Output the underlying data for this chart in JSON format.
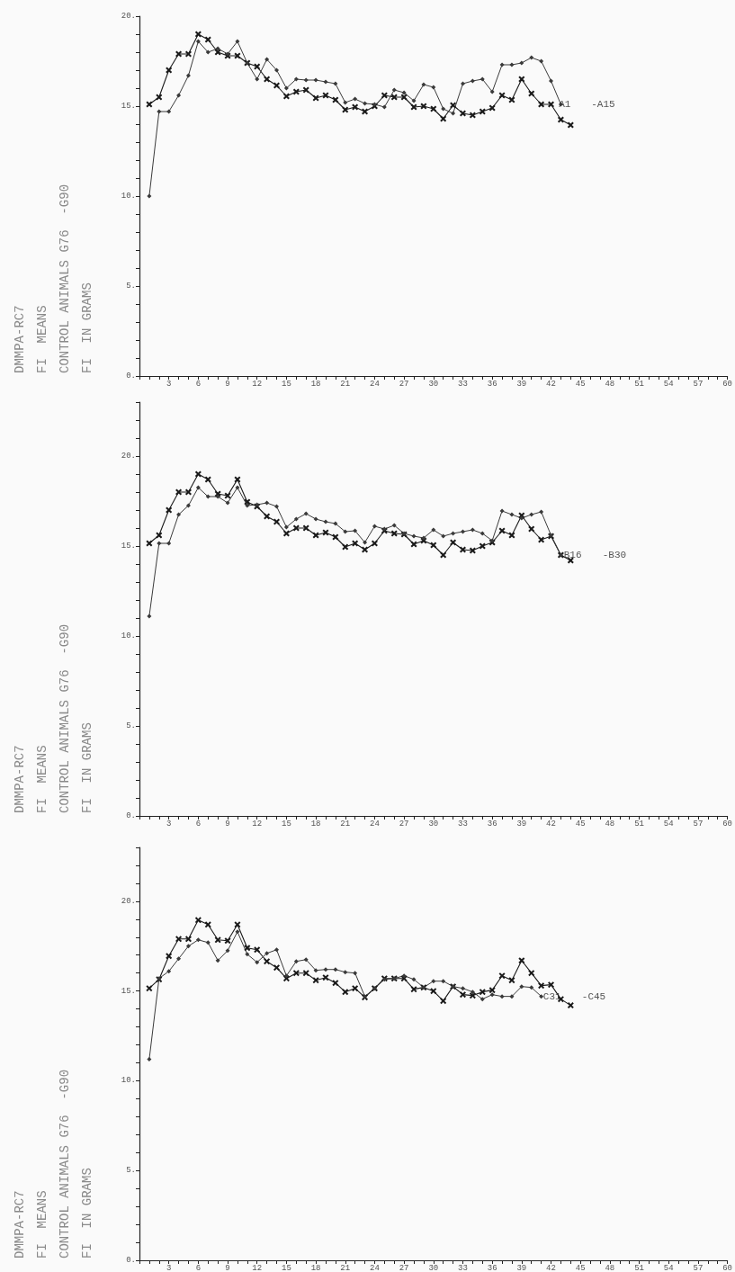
{
  "chart_data": [
    {
      "type": "line",
      "ylabel": "FI  IN GRAMS",
      "annotations": [
        "DMMPA-RC7",
        "FI  MEANS",
        "CONTROL ANIMALS G76  -G90",
        {
          "text": "A1",
          "x": 42.8,
          "y": 15.1
        },
        "-A15"
      ],
      "xlim": [
        0,
        60
      ],
      "ylim": [
        0,
        20
      ],
      "xticks": [
        {
          "value": 0,
          "label": null
        },
        {
          "value": 1,
          "label": null
        },
        {
          "value": 2,
          "label": null
        },
        3,
        {
          "value": 4,
          "label": null
        },
        {
          "value": 5,
          "label": null
        },
        6,
        {
          "value": 7,
          "label": null
        },
        {
          "value": 8,
          "label": null
        },
        9,
        {
          "value": 10,
          "label": null
        },
        {
          "value": 11,
          "label": null
        },
        12,
        {
          "value": 13,
          "label": null
        },
        {
          "value": 14,
          "label": null
        },
        15,
        {
          "value": 16,
          "label": null
        },
        {
          "value": 17,
          "label": null
        },
        18,
        {
          "value": 19,
          "label": null
        },
        {
          "value": 20,
          "label": null
        },
        21,
        {
          "value": 22,
          "label": null
        },
        {
          "value": 23,
          "label": null
        },
        24,
        {
          "value": 25,
          "label": null
        },
        {
          "value": 26,
          "label": null
        },
        27,
        {
          "value": 28,
          "label": null
        },
        {
          "value": 29,
          "label": null
        },
        30,
        {
          "value": 31,
          "label": null
        },
        {
          "value": 32,
          "label": null
        },
        33,
        {
          "value": 34,
          "label": null
        },
        {
          "value": 35,
          "label": null
        },
        36,
        {
          "value": 37,
          "label": null
        },
        {
          "value": 38,
          "label": null
        },
        39,
        {
          "value": 40,
          "label": null
        },
        {
          "value": 41,
          "label": null
        },
        42,
        {
          "value": 43,
          "label": null
        },
        {
          "value": 44,
          "label": null
        },
        45,
        {
          "value": 46,
          "label": null
        },
        {
          "value": 47,
          "label": null
        },
        48,
        {
          "value": 49,
          "label": null
        },
        {
          "value": 50,
          "label": null
        },
        51,
        {
          "value": 52,
          "label": null
        },
        {
          "value": 53,
          "label": null
        },
        54,
        {
          "value": 55,
          "label": null
        },
        {
          "value": 56,
          "label": null
        },
        57,
        {
          "value": 58,
          "label": null
        },
        {
          "value": 59,
          "label": null
        },
        60
      ],
      "yticks": [
        {
          "value": 0,
          "label": "0."
        },
        {
          "value": 1,
          "label": null
        },
        {
          "value": 2,
          "label": null
        },
        {
          "value": 3,
          "label": null
        },
        {
          "value": 4,
          "label": null
        },
        {
          "value": 5,
          "label": "5."
        },
        {
          "value": 6,
          "label": null
        },
        {
          "value": 7,
          "label": null
        },
        {
          "value": 8,
          "label": null
        },
        {
          "value": 9,
          "label": null
        },
        {
          "value": 10,
          "label": "10."
        },
        {
          "value": 11,
          "label": null
        },
        {
          "value": 12,
          "label": null
        },
        {
          "value": 13,
          "label": null
        },
        {
          "value": 14,
          "label": null
        },
        {
          "value": 15,
          "label": "15."
        },
        {
          "value": 16,
          "label": null
        },
        {
          "value": 17,
          "label": null
        },
        {
          "value": 18,
          "label": null
        },
        {
          "value": 19,
          "label": null
        },
        {
          "value": 20,
          "label": "20."
        }
      ],
      "series": [
        {
          "color": "#1a1a1a",
          "marker": "cross",
          "x": [
            1,
            2,
            3,
            4,
            5,
            6,
            7,
            8,
            9,
            10,
            11,
            12,
            13,
            14,
            15,
            16,
            17,
            18,
            19,
            20,
            21,
            22,
            23,
            24,
            25,
            26,
            27,
            28,
            29,
            30,
            31,
            32,
            33,
            34,
            35,
            36,
            37,
            38,
            39,
            40,
            41,
            42,
            43,
            44
          ],
          "values": [
            15.1,
            15.5,
            17.0,
            17.9,
            17.9,
            19.0,
            18.7,
            18.0,
            17.8,
            17.8,
            17.4,
            17.2,
            16.5,
            16.15,
            15.55,
            15.8,
            15.9,
            15.45,
            15.6,
            15.35,
            14.8,
            14.95,
            14.7,
            15.0,
            15.6,
            15.5,
            15.5,
            14.95,
            15.0,
            14.85,
            14.3,
            15.05,
            14.6,
            14.5,
            14.7,
            14.9,
            15.6,
            15.35,
            16.5,
            15.7,
            15.1,
            15.1,
            14.25,
            13.95
          ]
        },
        {
          "color": "#3a3a3a",
          "marker": "diamond",
          "x": [
            1,
            2,
            3,
            4,
            5,
            6,
            7,
            8,
            9,
            10,
            11,
            12,
            13,
            14,
            15,
            16,
            17,
            18,
            19,
            20,
            21,
            22,
            23,
            24,
            25,
            26,
            27,
            28,
            29,
            30,
            31,
            32,
            33,
            34,
            35,
            36,
            37,
            38,
            39,
            40,
            41,
            42,
            43
          ],
          "values": [
            10.0,
            14.7,
            14.7,
            15.6,
            16.7,
            18.6,
            18.0,
            18.2,
            17.9,
            18.6,
            17.4,
            16.5,
            17.6,
            17.0,
            16.0,
            16.5,
            16.45,
            16.45,
            16.35,
            16.25,
            15.2,
            15.4,
            15.15,
            15.1,
            14.95,
            15.9,
            15.75,
            15.3,
            16.2,
            16.05,
            14.85,
            14.6,
            16.25,
            16.4,
            16.5,
            15.8,
            17.3,
            17.3,
            17.4,
            17.7,
            17.5,
            16.4,
            15.1
          ]
        }
      ]
    },
    {
      "type": "line",
      "ylabel": "FI  IN GRAMS",
      "annotations": [
        "DMMPA-RC7",
        "FI  MEANS",
        "CONTROL ANIMALS G76  -G90",
        {
          "text": "B16",
          "x": 43.3,
          "y": 14.5
        },
        "-B30"
      ],
      "xlim": [
        0,
        60
      ],
      "ylim": [
        0,
        23
      ],
      "xticks": [
        {
          "value": 0,
          "label": null
        },
        {
          "value": 1,
          "label": null
        },
        {
          "value": 2,
          "label": null
        },
        3,
        {
          "value": 4,
          "label": null
        },
        {
          "value": 5,
          "label": null
        },
        6,
        {
          "value": 7,
          "label": null
        },
        {
          "value": 8,
          "label": null
        },
        9,
        {
          "value": 10,
          "label": null
        },
        {
          "value": 11,
          "label": null
        },
        12,
        {
          "value": 13,
          "label": null
        },
        {
          "value": 14,
          "label": null
        },
        15,
        {
          "value": 16,
          "label": null
        },
        {
          "value": 17,
          "label": null
        },
        18,
        {
          "value": 19,
          "label": null
        },
        {
          "value": 20,
          "label": null
        },
        21,
        {
          "value": 22,
          "label": null
        },
        {
          "value": 23,
          "label": null
        },
        24,
        {
          "value": 25,
          "label": null
        },
        {
          "value": 26,
          "label": null
        },
        27,
        {
          "value": 28,
          "label": null
        },
        {
          "value": 29,
          "label": null
        },
        30,
        {
          "value": 31,
          "label": null
        },
        {
          "value": 32,
          "label": null
        },
        33,
        {
          "value": 34,
          "label": null
        },
        {
          "value": 35,
          "label": null
        },
        36,
        {
          "value": 37,
          "label": null
        },
        {
          "value": 38,
          "label": null
        },
        39,
        {
          "value": 40,
          "label": null
        },
        {
          "value": 41,
          "label": null
        },
        42,
        {
          "value": 43,
          "label": null
        },
        {
          "value": 44,
          "label": null
        },
        45,
        {
          "value": 46,
          "label": null
        },
        {
          "value": 47,
          "label": null
        },
        48,
        {
          "value": 49,
          "label": null
        },
        {
          "value": 50,
          "label": null
        },
        51,
        {
          "value": 52,
          "label": null
        },
        {
          "value": 53,
          "label": null
        },
        54,
        {
          "value": 55,
          "label": null
        },
        {
          "value": 56,
          "label": null
        },
        57,
        {
          "value": 58,
          "label": null
        },
        {
          "value": 59,
          "label": null
        },
        60
      ],
      "yticks": [
        {
          "value": 0,
          "label": "0."
        },
        {
          "value": 1,
          "label": null
        },
        {
          "value": 2,
          "label": null
        },
        {
          "value": 3,
          "label": null
        },
        {
          "value": 4,
          "label": null
        },
        {
          "value": 5,
          "label": "5."
        },
        {
          "value": 6,
          "label": null
        },
        {
          "value": 7,
          "label": null
        },
        {
          "value": 8,
          "label": null
        },
        {
          "value": 9,
          "label": null
        },
        {
          "value": 10,
          "label": "10."
        },
        {
          "value": 11,
          "label": null
        },
        {
          "value": 12,
          "label": null
        },
        {
          "value": 13,
          "label": null
        },
        {
          "value": 14,
          "label": null
        },
        {
          "value": 15,
          "label": "15."
        },
        {
          "value": 16,
          "label": null
        },
        {
          "value": 17,
          "label": null
        },
        {
          "value": 18,
          "label": null
        },
        {
          "value": 19,
          "label": null
        },
        {
          "value": 20,
          "label": "20."
        },
        {
          "value": 21,
          "label": null
        },
        {
          "value": 22,
          "label": null
        },
        {
          "value": 23,
          "label": null
        }
      ],
      "series": [
        {
          "color": "#1a1a1a",
          "marker": "cross",
          "x": [
            1,
            2,
            3,
            4,
            5,
            6,
            7,
            8,
            9,
            10,
            11,
            12,
            13,
            14,
            15,
            16,
            17,
            18,
            19,
            20,
            21,
            22,
            23,
            24,
            25,
            26,
            27,
            28,
            29,
            30,
            31,
            32,
            33,
            34,
            35,
            36,
            37,
            38,
            39,
            40,
            41,
            42,
            43,
            44
          ],
          "values": [
            15.15,
            15.6,
            17.0,
            18.0,
            18.0,
            19.0,
            18.7,
            17.9,
            17.8,
            18.7,
            17.45,
            17.2,
            16.65,
            16.35,
            15.7,
            16.0,
            16.0,
            15.6,
            15.75,
            15.5,
            14.95,
            15.15,
            14.8,
            15.15,
            15.85,
            15.7,
            15.65,
            15.1,
            15.3,
            15.05,
            14.5,
            15.2,
            14.8,
            14.75,
            15.0,
            15.2,
            15.85,
            15.6,
            16.7,
            15.95,
            15.35,
            15.55,
            14.5,
            14.2
          ]
        },
        {
          "color": "#3a3a3a",
          "marker": "diamond",
          "x": [
            1,
            2,
            3,
            4,
            5,
            6,
            7,
            8,
            9,
            10,
            11,
            12,
            13,
            14,
            15,
            16,
            17,
            18,
            19,
            20,
            21,
            22,
            23,
            24,
            25,
            26,
            27,
            28,
            29,
            30,
            31,
            32,
            33,
            34,
            35,
            36,
            37,
            38,
            39,
            40,
            41,
            42,
            43
          ],
          "values": [
            11.1,
            15.15,
            15.15,
            16.75,
            17.25,
            18.25,
            17.75,
            17.75,
            17.4,
            18.25,
            17.25,
            17.3,
            17.4,
            17.2,
            16.05,
            16.5,
            16.8,
            16.5,
            16.35,
            16.25,
            15.8,
            15.85,
            15.2,
            16.1,
            15.95,
            16.15,
            15.7,
            15.55,
            15.45,
            15.9,
            15.55,
            15.7,
            15.8,
            15.9,
            15.7,
            15.3,
            16.95,
            16.75,
            16.55,
            16.75,
            16.9,
            15.6,
            14.5
          ]
        }
      ]
    },
    {
      "type": "line",
      "ylabel": "FI  IN GRAMS",
      "annotations": [
        "DMMPA-RC7",
        "FI  MEANS",
        "CONTROL ANIMALS G76  -G90",
        {
          "text": "C31",
          "x": 41.2,
          "y": 14.7
        },
        "-C45"
      ],
      "xlim": [
        0,
        60
      ],
      "ylim": [
        0,
        23
      ],
      "xticks": [
        {
          "value": 0,
          "label": null
        },
        {
          "value": 1,
          "label": null
        },
        {
          "value": 2,
          "label": null
        },
        3,
        {
          "value": 4,
          "label": null
        },
        {
          "value": 5,
          "label": null
        },
        6,
        {
          "value": 7,
          "label": null
        },
        {
          "value": 8,
          "label": null
        },
        9,
        {
          "value": 10,
          "label": null
        },
        {
          "value": 11,
          "label": null
        },
        12,
        {
          "value": 13,
          "label": null
        },
        {
          "value": 14,
          "label": null
        },
        15,
        {
          "value": 16,
          "label": null
        },
        {
          "value": 17,
          "label": null
        },
        18,
        {
          "value": 19,
          "label": null
        },
        {
          "value": 20,
          "label": null
        },
        21,
        {
          "value": 22,
          "label": null
        },
        {
          "value": 23,
          "label": null
        },
        24,
        {
          "value": 25,
          "label": null
        },
        {
          "value": 26,
          "label": null
        },
        27,
        {
          "value": 28,
          "label": null
        },
        {
          "value": 29,
          "label": null
        },
        30,
        {
          "value": 31,
          "label": null
        },
        {
          "value": 32,
          "label": null
        },
        33,
        {
          "value": 34,
          "label": null
        },
        {
          "value": 35,
          "label": null
        },
        36,
        {
          "value": 37,
          "label": null
        },
        {
          "value": 38,
          "label": null
        },
        39,
        {
          "value": 40,
          "label": null
        },
        {
          "value": 41,
          "label": null
        },
        42,
        {
          "value": 43,
          "label": null
        },
        {
          "value": 44,
          "label": null
        },
        45,
        {
          "value": 46,
          "label": null
        },
        {
          "value": 47,
          "label": null
        },
        48,
        {
          "value": 49,
          "label": null
        },
        {
          "value": 50,
          "label": null
        },
        51,
        {
          "value": 52,
          "label": null
        },
        {
          "value": 53,
          "label": null
        },
        54,
        {
          "value": 55,
          "label": null
        },
        {
          "value": 56,
          "label": null
        },
        57,
        {
          "value": 58,
          "label": null
        },
        {
          "value": 59,
          "label": null
        },
        60
      ],
      "yticks": [
        {
          "value": 0,
          "label": "0."
        },
        {
          "value": 1,
          "label": null
        },
        {
          "value": 2,
          "label": null
        },
        {
          "value": 3,
          "label": null
        },
        {
          "value": 4,
          "label": null
        },
        {
          "value": 5,
          "label": "5."
        },
        {
          "value": 6,
          "label": null
        },
        {
          "value": 7,
          "label": null
        },
        {
          "value": 8,
          "label": null
        },
        {
          "value": 9,
          "label": null
        },
        {
          "value": 10,
          "label": "10."
        },
        {
          "value": 11,
          "label": null
        },
        {
          "value": 12,
          "label": null
        },
        {
          "value": 13,
          "label": null
        },
        {
          "value": 14,
          "label": null
        },
        {
          "value": 15,
          "label": "15."
        },
        {
          "value": 16,
          "label": null
        },
        {
          "value": 17,
          "label": null
        },
        {
          "value": 18,
          "label": null
        },
        {
          "value": 19,
          "label": null
        },
        {
          "value": 20,
          "label": "20."
        },
        {
          "value": 21,
          "label": null
        },
        {
          "value": 22,
          "label": null
        },
        {
          "value": 23,
          "label": null
        }
      ],
      "series": [
        {
          "color": "#1a1a1a",
          "marker": "cross",
          "x": [
            1,
            2,
            3,
            4,
            5,
            6,
            7,
            8,
            9,
            10,
            11,
            12,
            13,
            14,
            15,
            16,
            17,
            18,
            19,
            20,
            21,
            22,
            23,
            24,
            25,
            26,
            27,
            28,
            29,
            30,
            31,
            32,
            33,
            34,
            35,
            36,
            37,
            38,
            39,
            40,
            41,
            42,
            43,
            44
          ],
          "values": [
            15.15,
            15.65,
            16.95,
            17.9,
            17.9,
            18.95,
            18.7,
            17.85,
            17.8,
            18.7,
            17.4,
            17.3,
            16.65,
            16.3,
            15.7,
            16.0,
            16.0,
            15.6,
            15.75,
            15.45,
            14.95,
            15.15,
            14.65,
            15.15,
            15.7,
            15.7,
            15.7,
            15.1,
            15.2,
            15.0,
            14.45,
            15.25,
            14.8,
            14.75,
            14.95,
            15.05,
            15.85,
            15.6,
            16.7,
            16.0,
            15.3,
            15.35,
            14.55,
            14.2
          ]
        },
        {
          "color": "#3a3a3a",
          "marker": "diamond",
          "x": [
            1,
            2,
            3,
            4,
            5,
            6,
            7,
            8,
            9,
            10,
            11,
            12,
            13,
            14,
            15,
            16,
            17,
            18,
            19,
            20,
            21,
            22,
            23,
            24,
            25,
            26,
            27,
            28,
            29,
            30,
            31,
            32,
            33,
            34,
            35,
            36,
            37,
            38,
            39,
            40,
            41
          ],
          "values": [
            11.2,
            15.7,
            16.1,
            16.8,
            17.5,
            17.85,
            17.7,
            16.7,
            17.25,
            18.3,
            17.05,
            16.6,
            17.1,
            17.3,
            15.85,
            16.65,
            16.75,
            16.15,
            16.2,
            16.2,
            16.05,
            16.0,
            14.7,
            15.15,
            15.65,
            15.7,
            15.85,
            15.65,
            15.2,
            15.55,
            15.55,
            15.25,
            15.15,
            14.95,
            14.55,
            14.8,
            14.7,
            14.7,
            15.25,
            15.2,
            14.7
          ]
        }
      ]
    }
  ]
}
